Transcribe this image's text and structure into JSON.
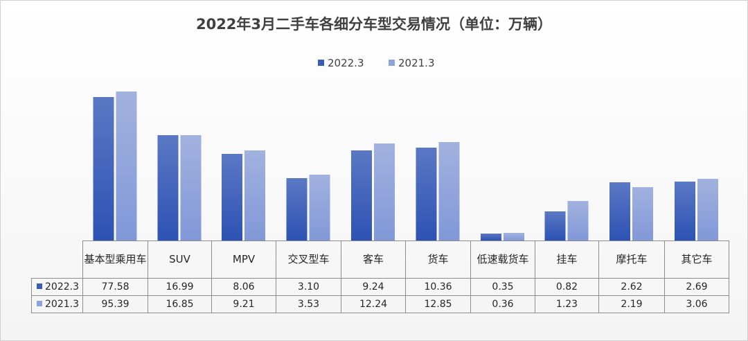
{
  "chart_data": {
    "type": "bar",
    "title": "2022年3月二手车各细分车型交易情况（单位：万辆）",
    "categories": [
      "基本型乘用车",
      "SUV",
      "MPV",
      "交叉型车",
      "客车",
      "货车",
      "低速载货车",
      "挂车",
      "摩托车",
      "其它车"
    ],
    "series": [
      {
        "name": "2022.3",
        "color": "#4a6cc0",
        "values": [
          77.58,
          16.99,
          8.06,
          3.1,
          9.24,
          10.36,
          0.35,
          0.82,
          2.62,
          2.69
        ],
        "labels": [
          "77.58",
          "16.99",
          "8.06",
          "3.10",
          "9.24",
          "10.36",
          "0.35",
          "0.82",
          "2.62",
          "2.69"
        ]
      },
      {
        "name": "2021.3",
        "color": "#8ea3dc",
        "values": [
          95.39,
          16.85,
          9.21,
          3.53,
          12.24,
          12.85,
          0.36,
          1.23,
          2.19,
          3.06
        ],
        "labels": [
          "95.39",
          "16.85",
          "9.21",
          "3.53",
          "12.24",
          "12.85",
          "0.36",
          "1.23",
          "2.19",
          "3.06"
        ]
      }
    ],
    "legend_position": "top",
    "data_table": true,
    "grid": false
  }
}
